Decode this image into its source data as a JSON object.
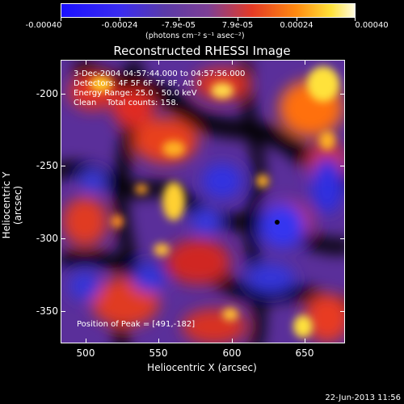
{
  "colorbar": {
    "labels": [
      "-0.00040",
      "-0.00024",
      "-7.9e-05",
      "7.9e-05",
      "0.00024",
      "0.00040"
    ],
    "unit": "(photons cm⁻² s⁻¹ asec⁻²)"
  },
  "title": "Reconstructed RHESSI Image",
  "info": {
    "time_range": "3-Dec-2004 04:57:44.000 to 04:57:56.000",
    "detectors": "Detectors: 4F 5F 6F 7F 8F, Att 0",
    "energy": "Energy Range: 25.0 - 50.0 keV",
    "method": "Clean    Total counts: 158.",
    "peak": "Position of Peak = [491,-182]"
  },
  "axes": {
    "x_title": "Heliocentric X (arcsec)",
    "y_title": "Heliocentric Y (arcsec)",
    "x_ticks": [
      "500",
      "550",
      "600",
      "650"
    ],
    "y_ticks": [
      "-200",
      "-250",
      "-300",
      "-350"
    ]
  },
  "timestamp": "22-Jun-2013 11:56",
  "colors": {
    "low": "#1a10ff",
    "mid": "#7d3f95",
    "high": "#ffe23a"
  }
}
